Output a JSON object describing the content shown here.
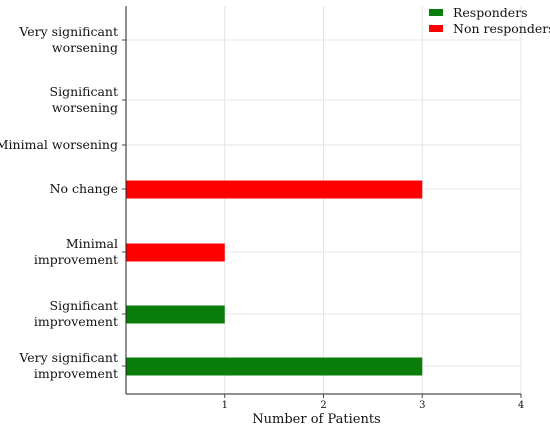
{
  "chart_data": {
    "type": "bar",
    "orientation": "horizontal",
    "categories": [
      [
        "Very significant",
        "worsening"
      ],
      [
        "Significant",
        "worsening"
      ],
      [
        "Minimal worsening"
      ],
      [
        "No change"
      ],
      [
        "Minimal",
        "improvement"
      ],
      [
        "Significant",
        "improvement"
      ],
      [
        "Very significant",
        "improvement"
      ]
    ],
    "series": [
      {
        "name": "Responders",
        "color": "#0b7d0b",
        "values": [
          0,
          0,
          0,
          0,
          0,
          1,
          3
        ]
      },
      {
        "name": "Non responders",
        "color": "#ff0000",
        "values": [
          0,
          0,
          0,
          3,
          1,
          0,
          0
        ]
      }
    ],
    "xlabel": "Number of Patients",
    "ylabel": "",
    "title": "",
    "xlim": [
      0,
      4
    ],
    "xticks": [
      1,
      2,
      3,
      4
    ],
    "grid": true,
    "legend_position": "top-right"
  }
}
